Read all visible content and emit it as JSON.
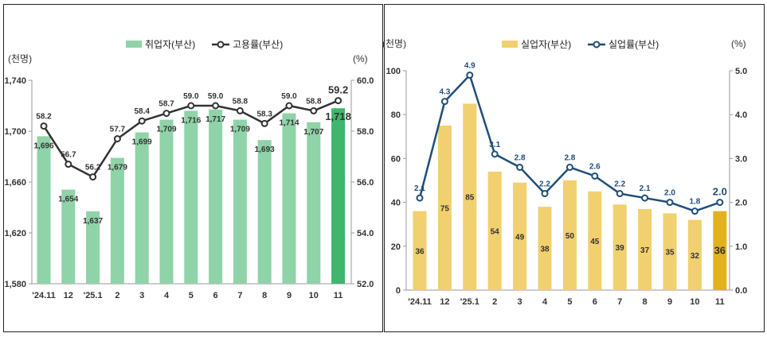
{
  "chart_data": [
    {
      "type": "bar+line",
      "categories": [
        "'24.11",
        "12",
        "'25.1",
        "2",
        "3",
        "4",
        "5",
        "6",
        "7",
        "8",
        "9",
        "10",
        "11"
      ],
      "series": [
        {
          "name": "취업자(부산)",
          "kind": "bar",
          "axis": "left",
          "color": "#8fd3a8",
          "highlight_color": "#3fb56e",
          "values": [
            1696,
            1654,
            1637,
            1679,
            1699,
            1709,
            1716,
            1717,
            1709,
            1693,
            1714,
            1707,
            1718
          ]
        },
        {
          "name": "고용률(부산)",
          "kind": "line",
          "axis": "right",
          "color": "#333333",
          "values": [
            58.2,
            56.7,
            56.2,
            57.7,
            58.4,
            58.7,
            59.0,
            59.0,
            58.8,
            58.3,
            59.0,
            58.8,
            59.2
          ]
        }
      ],
      "ylabel_left": "(천명)",
      "ylabel_right": "(%)",
      "ylim_left": [
        1580,
        1740
      ],
      "yticks_left": [
        "1,580",
        "1,620",
        "1,660",
        "1,700",
        "1,740"
      ],
      "ylim_right": [
        52.0,
        60.0
      ],
      "yticks_right": [
        "52.0",
        "54.0",
        "56.0",
        "58.0",
        "60.0"
      ],
      "legend": "top"
    },
    {
      "type": "bar+line",
      "categories": [
        "'24.11",
        "12",
        "'25.1",
        "2",
        "3",
        "4",
        "5",
        "6",
        "7",
        "8",
        "9",
        "10",
        "11"
      ],
      "series": [
        {
          "name": "실업자(부산)",
          "kind": "bar",
          "axis": "left",
          "color": "#f1d06f",
          "highlight_color": "#e2b21c",
          "values": [
            36,
            75,
            85,
            54,
            49,
            38,
            50,
            45,
            39,
            37,
            35,
            32,
            36
          ]
        },
        {
          "name": "실업률(부산)",
          "kind": "line",
          "axis": "right",
          "color": "#1f4e79",
          "values": [
            2.1,
            4.3,
            4.9,
            3.1,
            2.8,
            2.2,
            2.8,
            2.6,
            2.2,
            2.1,
            2.0,
            1.8,
            2.0
          ]
        }
      ],
      "ylabel_left": "(천명)",
      "ylabel_right": "(%)",
      "ylim_left": [
        0,
        100
      ],
      "yticks_left": [
        "0",
        "20",
        "40",
        "60",
        "80",
        "100"
      ],
      "ylim_right": [
        0.0,
        5.0
      ],
      "yticks_right": [
        "0.0",
        "1.0",
        "2.0",
        "3.0",
        "4.0",
        "5.0"
      ],
      "legend": "top"
    }
  ]
}
